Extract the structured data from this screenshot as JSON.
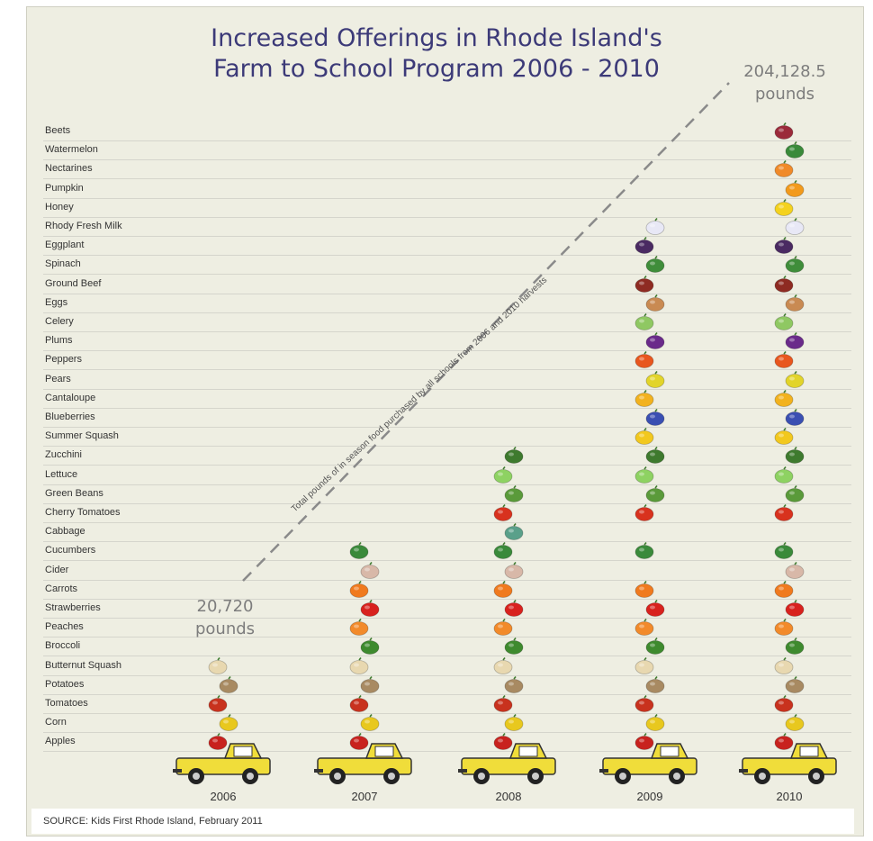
{
  "chart_data": {
    "type": "pictograph",
    "title": "Increased Offerings in Rhode Island's",
    "subtitle": "Farm to School Program 2006 - 2010",
    "items": [
      "Beets",
      "Watermelon",
      "Nectarines",
      "Pumpkin",
      "Honey",
      "Rhody Fresh Milk",
      "Eggplant",
      "Spinach",
      "Ground Beef",
      "Eggs",
      "Celery",
      "Plums",
      "Peppers",
      "Pears",
      "Cantaloupe",
      "Blueberries",
      "Summer Squash",
      "Zucchini",
      "Lettuce",
      "Green Beans",
      "Cherry Tomatoes",
      "Cabbage",
      "Cucumbers",
      "Cider",
      "Carrots",
      "Strawberries",
      "Peaches",
      "Broccoli",
      "Butternut Squash",
      "Potatoes",
      "Tomatoes",
      "Corn",
      "Apples"
    ],
    "years": [
      "2006",
      "2007",
      "2008",
      "2009",
      "2010"
    ],
    "items_offered": {
      "2006": [
        "Apples",
        "Corn",
        "Tomatoes",
        "Potatoes",
        "Butternut Squash"
      ],
      "2007": [
        "Apples",
        "Corn",
        "Tomatoes",
        "Potatoes",
        "Butternut Squash",
        "Broccoli",
        "Peaches",
        "Strawberries",
        "Carrots",
        "Cider",
        "Cucumbers"
      ],
      "2008": [
        "Apples",
        "Corn",
        "Tomatoes",
        "Potatoes",
        "Butternut Squash",
        "Broccoli",
        "Peaches",
        "Strawberries",
        "Carrots",
        "Cider",
        "Cucumbers",
        "Cabbage",
        "Cherry Tomatoes",
        "Green Beans",
        "Lettuce",
        "Zucchini"
      ],
      "2009": [
        "Apples",
        "Corn",
        "Tomatoes",
        "Potatoes",
        "Butternut Squash",
        "Broccoli",
        "Peaches",
        "Strawberries",
        "Carrots",
        "Cucumbers",
        "Cherry Tomatoes",
        "Green Beans",
        "Lettuce",
        "Zucchini",
        "Summer Squash",
        "Blueberries",
        "Cantaloupe",
        "Pears",
        "Peppers",
        "Plums",
        "Celery",
        "Eggs",
        "Ground Beef",
        "Spinach",
        "Eggplant",
        "Rhody Fresh Milk"
      ],
      "2010": [
        "Apples",
        "Corn",
        "Tomatoes",
        "Potatoes",
        "Butternut Squash",
        "Broccoli",
        "Peaches",
        "Strawberries",
        "Carrots",
        "Cider",
        "Cucumbers",
        "Cherry Tomatoes",
        "Green Beans",
        "Lettuce",
        "Zucchini",
        "Summer Squash",
        "Blueberries",
        "Cantaloupe",
        "Pears",
        "Peppers",
        "Plums",
        "Celery",
        "Eggs",
        "Ground Beef",
        "Spinach",
        "Eggplant",
        "Rhody Fresh Milk",
        "Honey",
        "Pumpkin",
        "Nectarines",
        "Watermelon",
        "Beets"
      ]
    },
    "pounds_2006_value": "20,720",
    "pounds_2006_unit": "pounds",
    "pounds_2010_value": "204,128.5",
    "pounds_2010_unit": "pounds",
    "trend_label": "Total pounds of in season food purchased by all schools from 2006 and 2010 harvests",
    "source": "SOURCE: Kids First Rhode Island, February 2011"
  },
  "colors": {
    "title": "#3c3a78",
    "background": "#eeeee2",
    "truck": "#f0dd3a",
    "annotation": "#7d7d7d"
  },
  "icons": {
    "Beets": "beet-icon",
    "Watermelon": "watermelon-icon",
    "Nectarines": "nectarine-icon",
    "Pumpkin": "pumpkin-icon",
    "Honey": "honey-icon",
    "Rhody Fresh Milk": "milk-carton-icon",
    "Eggplant": "eggplant-icon",
    "Spinach": "spinach-icon",
    "Ground Beef": "beef-icon",
    "Eggs": "egg-icon",
    "Celery": "celery-icon",
    "Plums": "plum-icon",
    "Peppers": "pepper-icon",
    "Pears": "pear-icon",
    "Cantaloupe": "cantaloupe-icon",
    "Blueberries": "blueberry-icon",
    "Summer Squash": "squash-icon",
    "Zucchini": "zucchini-icon",
    "Lettuce": "lettuce-icon",
    "Green Beans": "green-bean-icon",
    "Cherry Tomatoes": "cherry-tomato-icon",
    "Cabbage": "cabbage-icon",
    "Cucumbers": "cucumber-icon",
    "Cider": "cider-jug-icon",
    "Carrots": "carrot-icon",
    "Strawberries": "strawberry-icon",
    "Peaches": "peach-icon",
    "Broccoli": "broccoli-icon",
    "Butternut Squash": "butternut-squash-icon",
    "Potatoes": "potato-icon",
    "Tomatoes": "tomato-icon",
    "Corn": "corn-icon",
    "Apples": "apple-icon"
  },
  "item_colors": {
    "Beets": "#9b2a3a",
    "Watermelon": "#3a8a3a",
    "Nectarines": "#f08a2a",
    "Pumpkin": "#f29a1c",
    "Honey": "#f4d21e",
    "Rhody Fresh Milk": "#e8e8f6",
    "Eggplant": "#4a2a62",
    "Spinach": "#3f8d3a",
    "Ground Beef": "#8e2b22",
    "Eggs": "#c98a52",
    "Celery": "#8fc862",
    "Plums": "#6a2a8a",
    "Peppers": "#e8561e",
    "Pears": "#e2d42a",
    "Cantaloupe": "#f2b21e",
    "Blueberries": "#3a4fb2",
    "Summer Squash": "#f2c81e",
    "Zucchini": "#3e7a2e",
    "Lettuce": "#8ed262",
    "Green Beans": "#5a9a3a",
    "Cherry Tomatoes": "#d8321e",
    "Cabbage": "#5aa08a",
    "Cucumbers": "#3a8a3a",
    "Cider": "#d8b8a8",
    "Carrots": "#f07a1e",
    "Strawberries": "#d8221e",
    "Peaches": "#f28a2a",
    "Broccoli": "#3e8a2e",
    "Butternut Squash": "#e8d8b0",
    "Potatoes": "#a88a62",
    "Tomatoes": "#c8321e",
    "Corn": "#e8c81e",
    "Apples": "#c8221e"
  }
}
